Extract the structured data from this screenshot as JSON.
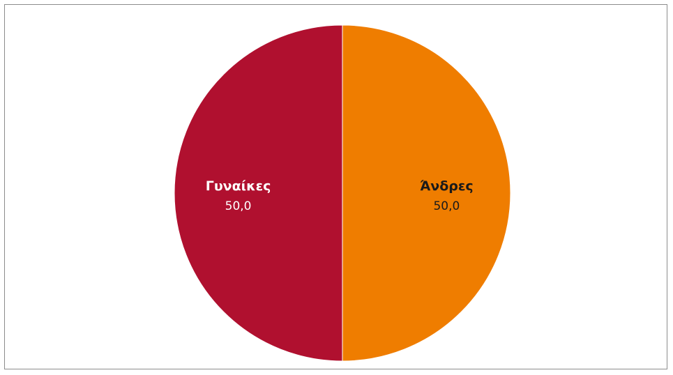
{
  "chart_data": {
    "type": "pie",
    "slices": [
      {
        "label": "Άνδρες",
        "value": 50.0,
        "value_text": "50,0",
        "color": "#EF7D00",
        "text_color": "#1a1a1a"
      },
      {
        "label": "Γυναίκες",
        "value": 50.0,
        "value_text": "50,0",
        "color": "#B0102F",
        "text_color": "#ffffff"
      }
    ],
    "start_angle_deg": 0,
    "direction": "clockwise",
    "legend": "none"
  }
}
